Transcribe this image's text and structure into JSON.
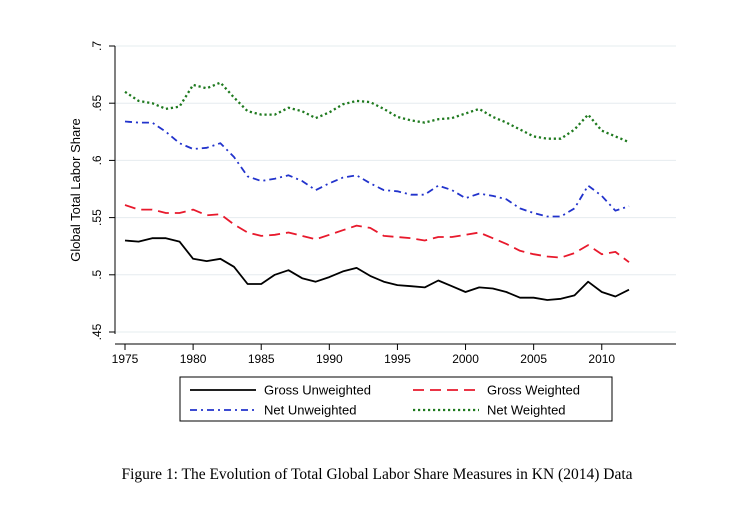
{
  "caption": "Figure 1: The Evolution of Total Global Labor Share Measures in KN (2014) Data",
  "chart_data": {
    "type": "line",
    "title": "",
    "xlabel": "",
    "ylabel": "Global Total Labor Share",
    "xlim": [
      1975,
      2012
    ],
    "ylim": [
      0.45,
      0.7
    ],
    "x_ticks": [
      "1975",
      "1980",
      "1985",
      "1990",
      "1995",
      "2000",
      "2005",
      "2010"
    ],
    "y_ticks": [
      ".45",
      ".5",
      ".55",
      ".6",
      ".65",
      ".7"
    ],
    "grid": "horizontal",
    "legend_position": "bottom",
    "x": [
      1975,
      1976,
      1977,
      1978,
      1979,
      1980,
      1981,
      1982,
      1983,
      1984,
      1985,
      1986,
      1987,
      1988,
      1989,
      1990,
      1991,
      1992,
      1993,
      1994,
      1995,
      1996,
      1997,
      1998,
      1999,
      2000,
      2001,
      2002,
      2003,
      2004,
      2005,
      2006,
      2007,
      2008,
      2009,
      2010,
      2011,
      2012
    ],
    "series": [
      {
        "name": "Gross Unweighted",
        "color": "#000000",
        "dash": "solid",
        "values": [
          0.53,
          0.529,
          0.532,
          0.532,
          0.529,
          0.514,
          0.512,
          0.514,
          0.507,
          0.492,
          0.492,
          0.5,
          0.504,
          0.497,
          0.494,
          0.498,
          0.503,
          0.506,
          0.499,
          0.494,
          0.491,
          0.49,
          0.489,
          0.495,
          0.49,
          0.485,
          0.489,
          0.488,
          0.485,
          0.48,
          0.48,
          0.478,
          0.479,
          0.482,
          0.494,
          0.485,
          0.481,
          0.487
        ]
      },
      {
        "name": "Gross Weighted",
        "color": "#e8192c",
        "dash": "long-dash",
        "values": [
          0.561,
          0.557,
          0.557,
          0.554,
          0.554,
          0.557,
          0.552,
          0.553,
          0.544,
          0.537,
          0.534,
          0.535,
          0.537,
          0.534,
          0.531,
          0.535,
          0.539,
          0.543,
          0.541,
          0.534,
          0.533,
          0.532,
          0.53,
          0.533,
          0.533,
          0.535,
          0.537,
          0.532,
          0.527,
          0.521,
          0.518,
          0.516,
          0.515,
          0.519,
          0.526,
          0.518,
          0.52,
          0.511
        ]
      },
      {
        "name": "Net Unweighted",
        "color": "#2233cc",
        "dash": "dash-dot",
        "values": [
          0.634,
          0.633,
          0.633,
          0.625,
          0.615,
          0.61,
          0.611,
          0.615,
          0.603,
          0.586,
          0.582,
          0.584,
          0.587,
          0.582,
          0.574,
          0.58,
          0.585,
          0.587,
          0.58,
          0.574,
          0.573,
          0.57,
          0.57,
          0.578,
          0.574,
          0.567,
          0.571,
          0.569,
          0.566,
          0.558,
          0.554,
          0.551,
          0.551,
          0.558,
          0.578,
          0.569,
          0.556,
          0.56
        ]
      },
      {
        "name": "Net Weighted",
        "color": "#1f7a1f",
        "dash": "dotted",
        "values": [
          0.66,
          0.652,
          0.65,
          0.645,
          0.647,
          0.666,
          0.663,
          0.668,
          0.655,
          0.643,
          0.64,
          0.64,
          0.646,
          0.643,
          0.637,
          0.642,
          0.649,
          0.652,
          0.651,
          0.645,
          0.638,
          0.635,
          0.633,
          0.636,
          0.637,
          0.641,
          0.645,
          0.638,
          0.633,
          0.627,
          0.621,
          0.619,
          0.619,
          0.627,
          0.64,
          0.626,
          0.621,
          0.616
        ]
      }
    ]
  }
}
